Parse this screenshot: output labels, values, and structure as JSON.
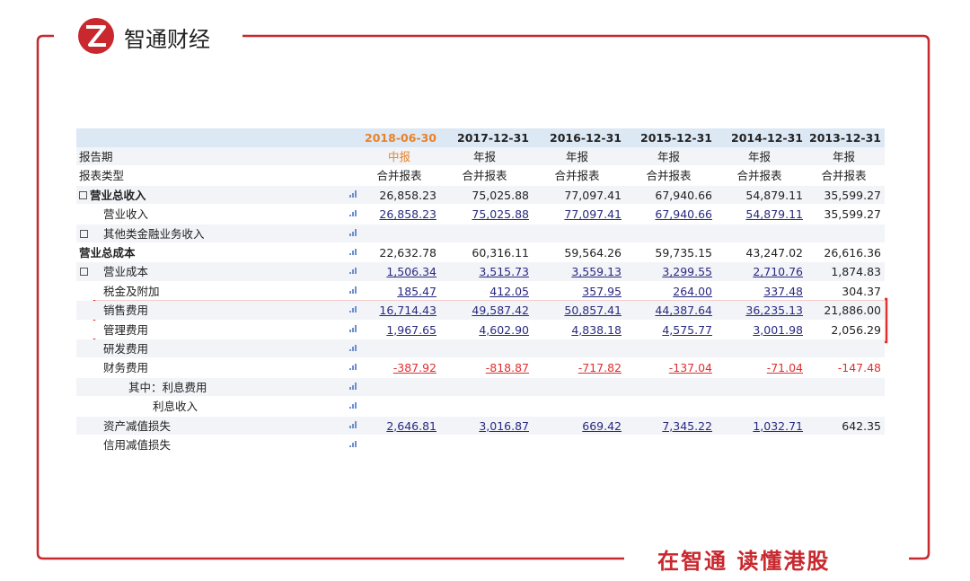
{
  "brand": "智通财经",
  "slogan": "在智通 读懂港股",
  "table": {
    "header": [
      "2018-06-30",
      "2017-12-31",
      "2016-12-31",
      "2015-12-31",
      "2014-12-31",
      "2013-12-31"
    ],
    "rows": [
      {
        "label": "报告期",
        "values": [
          "中报",
          "年报",
          "年报",
          "年报",
          "年报",
          "年报"
        ]
      },
      {
        "label": "报表类型",
        "values": [
          "合并报表",
          "合并报表",
          "合并报表",
          "合并报表",
          "合并报表",
          "合并报表"
        ]
      },
      {
        "label": "营业总收入",
        "bold": true,
        "expand": true,
        "values": [
          "26,858.23",
          "75,025.88",
          "77,097.41",
          "67,940.66",
          "54,879.11",
          "35,599.27"
        ]
      },
      {
        "label": "营业收入",
        "indent": 1,
        "link": true,
        "values": [
          "26,858.23",
          "75,025.88",
          "77,097.41",
          "67,940.66",
          "54,879.11",
          "35,599.27"
        ]
      },
      {
        "label": "其他类金融业务收入",
        "indent": 1,
        "expand": true
      },
      {
        "label": "营业总成本",
        "bold": true,
        "values": [
          "22,632.78",
          "60,316.11",
          "59,564.26",
          "59,735.15",
          "43,247.02",
          "26,616.36"
        ]
      },
      {
        "label": "营业成本",
        "indent": 1,
        "expand": true,
        "link": true,
        "values": [
          "1,506.34",
          "3,515.73",
          "3,559.13",
          "3,299.55",
          "2,710.76",
          "1,874.83"
        ]
      },
      {
        "label": "税金及附加",
        "indent": 1,
        "link": true,
        "values": [
          "185.47",
          "412.05",
          "357.95",
          "264.00",
          "337.48",
          "304.37"
        ]
      },
      {
        "label": "销售费用",
        "indent": 1,
        "link": true,
        "values": [
          "16,714.43",
          "49,587.42",
          "50,857.41",
          "44,387.64",
          "36,235.13",
          "21,886.00"
        ]
      },
      {
        "label": "管理费用",
        "indent": 1,
        "link": true,
        "values": [
          "1,967.65",
          "4,602.90",
          "4,838.18",
          "4,575.77",
          "3,001.98",
          "2,056.29"
        ]
      },
      {
        "label": "研发费用",
        "indent": 1
      },
      {
        "label": "财务费用",
        "indent": 1,
        "link": true,
        "values": [
          "-387.92",
          "-818.87",
          "-717.82",
          "-137.04",
          "-71.04",
          "-147.48"
        ]
      },
      {
        "label": "其中：利息费用",
        "indent": 2
      },
      {
        "label": "利息收入",
        "indent": 3
      },
      {
        "label": "资产减值损失",
        "indent": 1,
        "link": true,
        "values": [
          "2,646.81",
          "3,016.87",
          "669.42",
          "7,345.22",
          "1,032.71",
          "642.35"
        ]
      },
      {
        "label": "信用减值损失",
        "indent": 1
      }
    ]
  }
}
